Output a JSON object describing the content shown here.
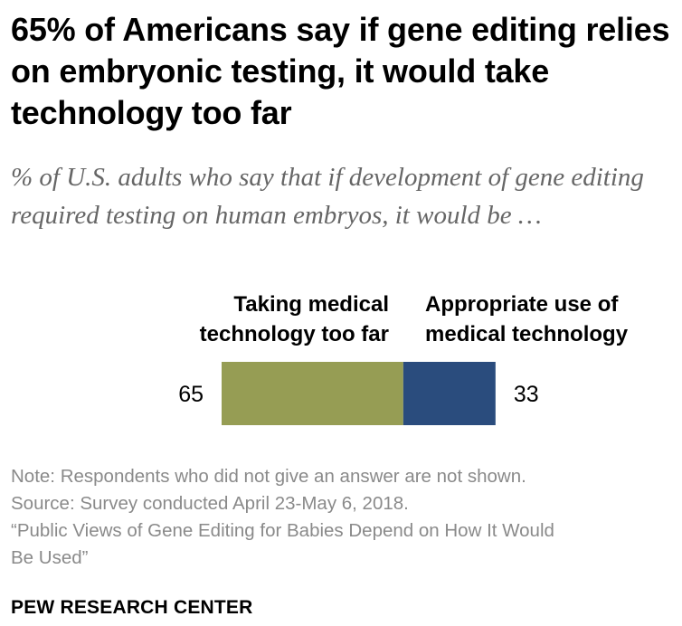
{
  "chart_data": {
    "type": "bar",
    "title": "65% of Americans say if gene editing relies on embryonic testing, it would take technology too far",
    "subtitle": "% of U.S. adults who say that if development of gene editing required testing on human embryos, it would be …",
    "categories": [
      ""
    ],
    "series": [
      {
        "name": "Taking medical technology too far",
        "values": [
          65
        ],
        "color": "#969D54"
      },
      {
        "name": "Appropriate use of medical technology",
        "values": [
          33
        ],
        "color": "#2A4C7D"
      }
    ],
    "orientation": "horizontal",
    "stacked": true,
    "xlim": [
      0,
      100
    ],
    "grid": false
  },
  "header": {
    "left_label_line1": "Taking medical",
    "left_label_line2": "technology too far",
    "right_label_line1": "Appropriate use of",
    "right_label_line2": "medical technology"
  },
  "notes": {
    "note": "Note: Respondents who did not give an answer are not shown.",
    "source": "Source: Survey conducted April 23-May 6, 2018.",
    "report_line1": "“Public Views of Gene Editing for Babies Depend on How It Would",
    "report_line2": "Be Used”"
  },
  "brand": "PEW RESEARCH CENTER"
}
